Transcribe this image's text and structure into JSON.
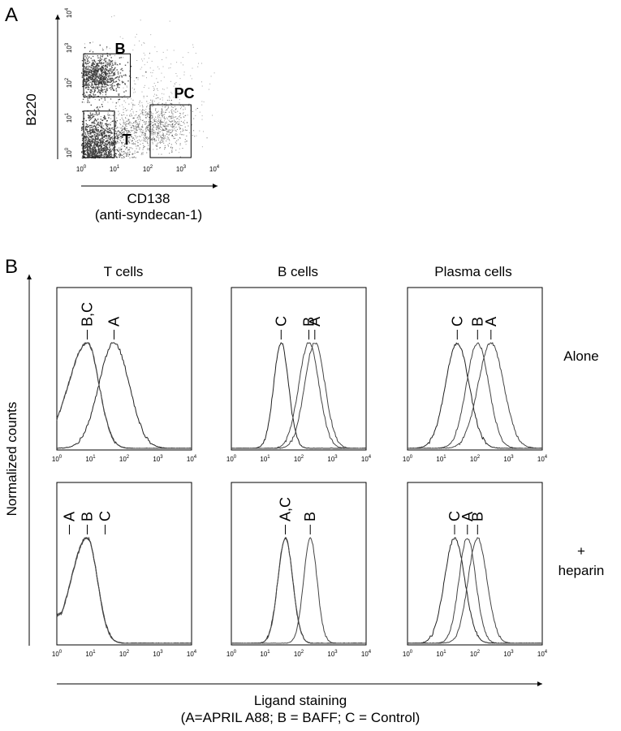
{
  "panel_labels": {
    "a": "A",
    "b": "B"
  },
  "panel_a": {
    "ylabel": "B220",
    "xlabel_line1": "CD138",
    "xlabel_line2": "(anti-syndecan-1)",
    "gates": [
      "B",
      "T",
      "PC"
    ]
  },
  "panel_b": {
    "columns": [
      "T cells",
      "B cells",
      "Plasma cells"
    ],
    "rows": [
      "Alone",
      "+",
      "heparin"
    ],
    "ylabel": "Normalized counts",
    "xlabel_line1": "Ligand staining",
    "xlabel_line2": "(A=APRIL A88; B = BAFF; C = Control)"
  },
  "tick_base": "10",
  "chart_data": [
    {
      "type": "scatter",
      "panel": "A",
      "xlabel": "CD138 (anti-syndecan-1)",
      "ylabel": "B220",
      "xscale": "log",
      "yscale": "log",
      "xlim": [
        1,
        10000
      ],
      "ylim": [
        1,
        10000
      ],
      "x_tick_exponents": [
        "0",
        "1",
        "2",
        "3",
        "4"
      ],
      "y_tick_exponents": [
        "0",
        "1",
        "2",
        "3",
        "4"
      ],
      "populations": [
        {
          "name": "B",
          "x_range": [
            1,
            30
          ],
          "y_range": [
            50,
            800
          ]
        },
        {
          "name": "T",
          "x_range": [
            1,
            10
          ],
          "y_range": [
            1,
            20
          ]
        },
        {
          "name": "PC",
          "x_range": [
            100,
            2000
          ],
          "y_range": [
            1,
            30
          ]
        }
      ]
    },
    {
      "type": "line",
      "panel": "B",
      "xscale": "log",
      "xlim": [
        1,
        10000
      ],
      "x_tick_exponents": [
        "0",
        "1",
        "2",
        "3",
        "4"
      ],
      "xlabel": "Ligand staining",
      "ylabel": "Normalized counts",
      "plots": [
        {
          "column": "T cells",
          "row": "Alone",
          "labels": [
            "B,C",
            "A"
          ],
          "series": [
            {
              "name": "A",
              "peak": 50,
              "width": 0.45,
              "skew": 0.0
            },
            {
              "name": "B",
              "peak": 8,
              "width": 0.35,
              "skew": 0.6
            },
            {
              "name": "C",
              "peak": 8,
              "width": 0.35,
              "skew": 0.6
            }
          ]
        },
        {
          "column": "B cells",
          "row": "Alone",
          "labels": [
            "C",
            "B",
            "A"
          ],
          "series": [
            {
              "name": "C",
              "peak": 30,
              "width": 0.22,
              "skew": 0.0
            },
            {
              "name": "B",
              "peak": 200,
              "width": 0.3,
              "skew": 0.0
            },
            {
              "name": "A",
              "peak": 300,
              "width": 0.3,
              "skew": 0.0
            }
          ]
        },
        {
          "column": "Plasma cells",
          "row": "Alone",
          "labels": [
            "C",
            "B",
            "A"
          ],
          "series": [
            {
              "name": "C",
              "peak": 30,
              "width": 0.35,
              "skew": 0.0
            },
            {
              "name": "B",
              "peak": 120,
              "width": 0.33,
              "skew": 0.0
            },
            {
              "name": "A",
              "peak": 300,
              "width": 0.38,
              "skew": 0.0
            }
          ]
        },
        {
          "column": "T cells",
          "row": "+ heparin",
          "labels": [
            "A",
            "B",
            "C"
          ],
          "series": [
            {
              "name": "A",
              "peak": 8,
              "width": 0.3,
              "skew": 0.6
            },
            {
              "name": "B",
              "peak": 8,
              "width": 0.3,
              "skew": 0.6
            },
            {
              "name": "C",
              "peak": 8,
              "width": 0.3,
              "skew": 0.6
            }
          ]
        },
        {
          "column": "B cells",
          "row": "+ heparin",
          "labels": [
            "A,C",
            "B"
          ],
          "series": [
            {
              "name": "A",
              "peak": 40,
              "width": 0.22,
              "skew": 0.0
            },
            {
              "name": "C",
              "peak": 40,
              "width": 0.22,
              "skew": 0.0
            },
            {
              "name": "B",
              "peak": 220,
              "width": 0.2,
              "skew": 0.0
            }
          ]
        },
        {
          "column": "Plasma cells",
          "row": "+ heparin",
          "labels": [
            "C",
            "A",
            "B"
          ],
          "series": [
            {
              "name": "C",
              "peak": 25,
              "width": 0.3,
              "skew": 0.0
            },
            {
              "name": "A",
              "peak": 60,
              "width": 0.25,
              "skew": 0.0
            },
            {
              "name": "B",
              "peak": 120,
              "width": 0.28,
              "skew": 0.0
            }
          ]
        }
      ]
    }
  ]
}
